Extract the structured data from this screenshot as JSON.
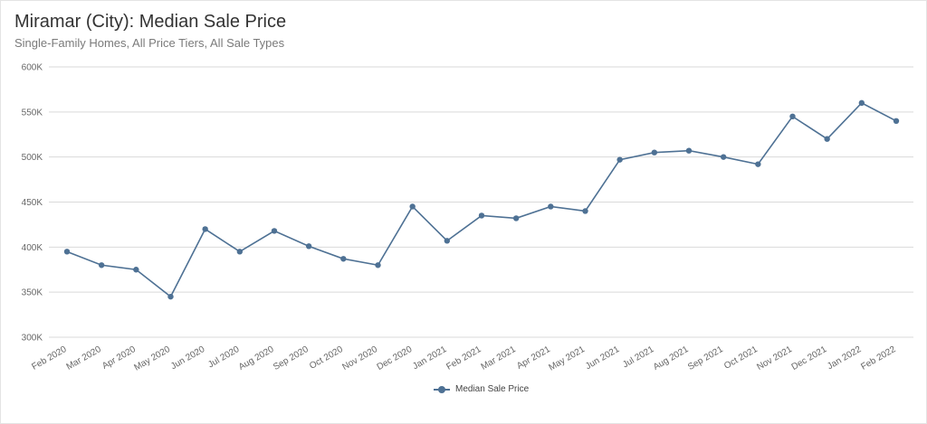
{
  "title": "Miramar (City): Median Sale Price",
  "subtitle": "Single-Family Homes, All Price Tiers, All Sale Types",
  "colors": {
    "series": "#4e7194",
    "grid": "#d9d9d9",
    "axis_text": "#666666"
  },
  "chart_data": {
    "type": "line",
    "title": "Miramar (City): Median Sale Price",
    "subtitle": "Single-Family Homes, All Price Tiers, All Sale Types",
    "xlabel": "",
    "ylabel": "",
    "categories": [
      "Feb 2020",
      "Mar 2020",
      "Apr 2020",
      "May 2020",
      "Jun 2020",
      "Jul 2020",
      "Aug 2020",
      "Sep 2020",
      "Oct 2020",
      "Nov 2020",
      "Dec 2020",
      "Jan 2021",
      "Feb 2021",
      "Mar 2021",
      "Apr 2021",
      "May 2021",
      "Jun 2021",
      "Jul 2021",
      "Aug 2021",
      "Sep 2021",
      "Oct 2021",
      "Nov 2021",
      "Dec 2021",
      "Jan 2022",
      "Feb 2022"
    ],
    "series": [
      {
        "name": "Median Sale Price",
        "values": [
          395000,
          380000,
          375000,
          345000,
          420000,
          395000,
          418000,
          401000,
          387000,
          380000,
          445000,
          407000,
          435000,
          432000,
          445000,
          440000,
          497000,
          505000,
          507000,
          500000,
          492000,
          545000,
          520000,
          560000,
          540000
        ]
      }
    ],
    "ylim": [
      300000,
      600000
    ],
    "yticks": [
      300000,
      350000,
      400000,
      450000,
      500000,
      550000,
      600000
    ],
    "ytick_labels": [
      "300K",
      "350K",
      "400K",
      "450K",
      "500K",
      "550K",
      "600K"
    ],
    "grid": true,
    "legend": "bottom-center"
  }
}
